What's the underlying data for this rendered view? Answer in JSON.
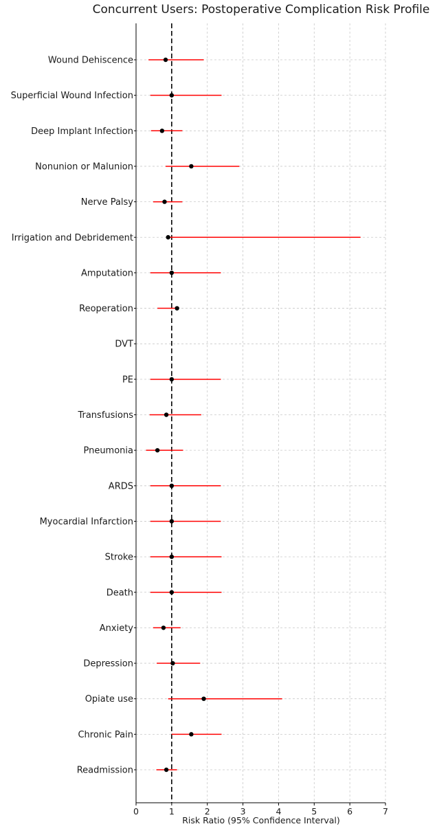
{
  "chart_data": {
    "type": "forest",
    "title": "Concurrent Users: Postoperative Complication Risk Profile",
    "xlabel": "Risk Ratio (95% Confidence Interval)",
    "ylabel": "",
    "xlim": [
      0,
      7
    ],
    "xticks": [
      0,
      1,
      2,
      3,
      4,
      5,
      6,
      7
    ],
    "reference_line": 1,
    "grid": true,
    "colors": {
      "ci": "#ff0000",
      "point": "#000000",
      "reference": "#000000",
      "grid": "#c8c8c8"
    },
    "rows": [
      {
        "label": "Wound Dehiscence",
        "rr": 0.83,
        "low": 0.35,
        "high": 1.9
      },
      {
        "label": "Superficial Wound Infection",
        "rr": 1.0,
        "low": 0.4,
        "high": 2.4
      },
      {
        "label": "Deep Implant Infection",
        "rr": 0.73,
        "low": 0.42,
        "high": 1.3
      },
      {
        "label": "Nonunion or Malunion",
        "rr": 1.55,
        "low": 0.83,
        "high": 2.9
      },
      {
        "label": "Nerve Palsy",
        "rr": 0.8,
        "low": 0.48,
        "high": 1.3
      },
      {
        "label": "Irrigation and Debridement",
        "rr": 0.9,
        "low": 0.9,
        "high": 6.3
      },
      {
        "label": "Amputation",
        "rr": 1.0,
        "low": 0.4,
        "high": 2.38
      },
      {
        "label": "Reoperation",
        "rr": 1.15,
        "low": 0.6,
        "high": 1.15
      },
      {
        "label": "DVT",
        "rr": null,
        "low": null,
        "high": null
      },
      {
        "label": "PE",
        "rr": 1.0,
        "low": 0.4,
        "high": 2.38
      },
      {
        "label": "Transfusions",
        "rr": 0.85,
        "low": 0.38,
        "high": 1.83
      },
      {
        "label": "Pneumonia",
        "rr": 0.6,
        "low": 0.28,
        "high": 1.32
      },
      {
        "label": "ARDS",
        "rr": 1.0,
        "low": 0.4,
        "high": 2.38
      },
      {
        "label": "Myocardial Infarction",
        "rr": 1.0,
        "low": 0.4,
        "high": 2.38
      },
      {
        "label": "Stroke",
        "rr": 1.0,
        "low": 0.4,
        "high": 2.4
      },
      {
        "label": "Death",
        "rr": 1.0,
        "low": 0.4,
        "high": 2.4
      },
      {
        "label": "Anxiety",
        "rr": 0.77,
        "low": 0.48,
        "high": 1.25
      },
      {
        "label": "Depression",
        "rr": 1.03,
        "low": 0.58,
        "high": 1.8
      },
      {
        "label": "Opiate use",
        "rr": 1.9,
        "low": 0.9,
        "high": 4.1
      },
      {
        "label": "Chronic Pain",
        "rr": 1.55,
        "low": 1.0,
        "high": 2.4
      },
      {
        "label": "Readmission",
        "rr": 0.85,
        "low": 0.57,
        "high": 1.15
      }
    ]
  }
}
